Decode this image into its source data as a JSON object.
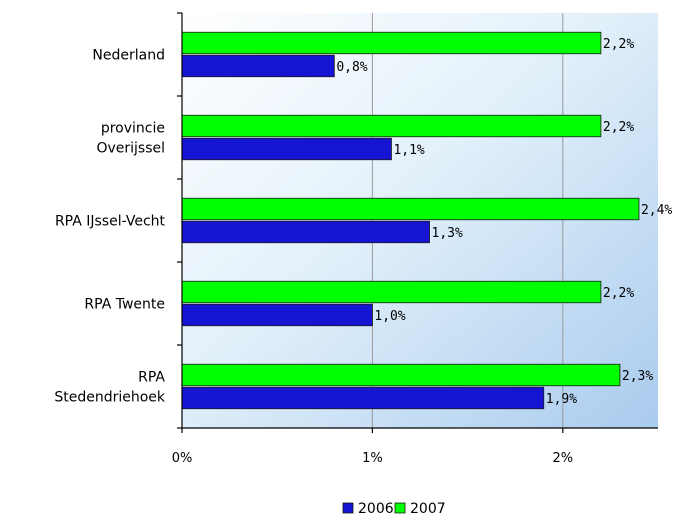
{
  "chart_data": {
    "type": "bar",
    "orientation": "horizontal",
    "categories": [
      [
        "Nederland"
      ],
      [
        "provincie",
        "Overijssel"
      ],
      [
        "RPA IJssel-Vecht"
      ],
      [
        "RPA Twente"
      ],
      [
        "RPA",
        "Stedendriehoek"
      ]
    ],
    "series": [
      {
        "name": "2007",
        "color": "#00ff00",
        "values": [
          2.2,
          2.2,
          2.4,
          2.2,
          2.3
        ],
        "labels": [
          "2,2%",
          "2,2%",
          "2,4%",
          "2,2%",
          "2,3%"
        ]
      },
      {
        "name": "2006",
        "color": "#1414d2",
        "values": [
          0.8,
          1.1,
          1.3,
          1.0,
          1.9
        ],
        "labels": [
          "0,8%",
          "1,1%",
          "1,3%",
          "1,0%",
          "1,9%"
        ]
      }
    ],
    "xlim": [
      0,
      2.5
    ],
    "xticks": [
      0,
      1,
      2
    ],
    "xtick_labels": [
      "0%",
      "1%",
      "2%"
    ],
    "grid": true,
    "legend": {
      "placement": "bottom-center",
      "entries": [
        {
          "name": "2006",
          "color": "#1414d2"
        },
        {
          "name": "2007",
          "color": "#00ff00"
        }
      ]
    },
    "title": "",
    "xlabel": "",
    "ylabel": ""
  }
}
